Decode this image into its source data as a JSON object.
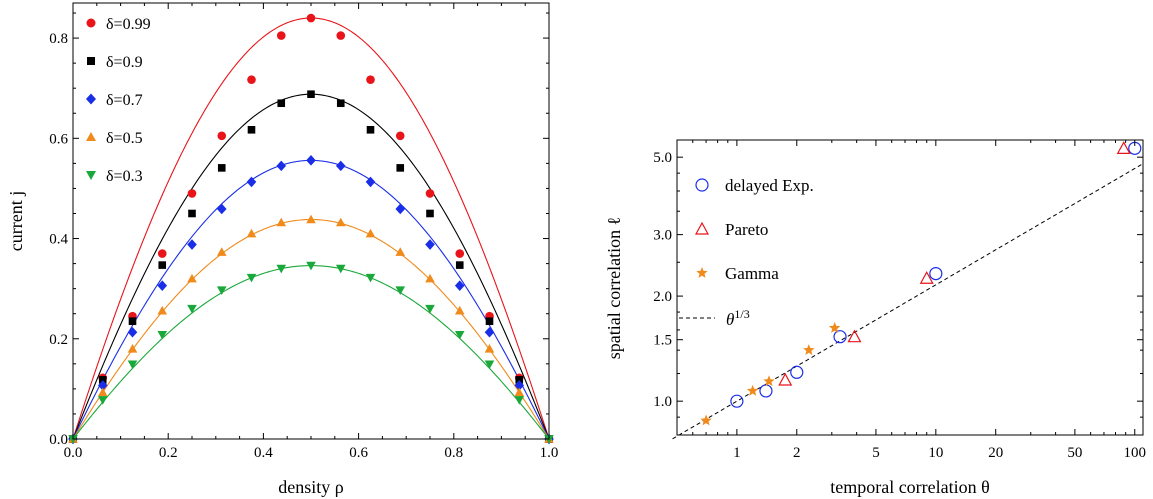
{
  "chart_data": [
    {
      "type": "line",
      "xlabel": "density ρ",
      "ylabel": "current j",
      "xlim": [
        0,
        1
      ],
      "ylim": [
        0,
        0.87
      ],
      "xticks": [
        0.0,
        0.2,
        0.4,
        0.6,
        0.8,
        1.0
      ],
      "xtick_labels": [
        "0.0",
        "0.2",
        "0.4",
        "0.6",
        "0.8",
        "1.0"
      ],
      "yticks": [
        0.0,
        0.2,
        0.4,
        0.6,
        0.8
      ],
      "ytick_labels": [
        "0.0",
        "0.2",
        "0.4",
        "0.6",
        "0.8"
      ],
      "legend_position": "top-left",
      "grid": false,
      "x": [
        0,
        0.0625,
        0.125,
        0.1875,
        0.25,
        0.3125,
        0.375,
        0.4375,
        0.5,
        0.5625,
        0.625,
        0.6875,
        0.75,
        0.8125,
        0.875,
        0.9375,
        1.0
      ],
      "series": [
        {
          "name": "δ=0.99",
          "color": "#e8141a",
          "marker": "circle",
          "values": [
            0,
            0.122,
            0.245,
            0.37,
            0.49,
            0.605,
            0.717,
            0.805,
            0.84,
            0.805,
            0.717,
            0.605,
            0.49,
            0.37,
            0.245,
            0.122,
            0
          ],
          "peak": 0.84
        },
        {
          "name": "δ=0.9",
          "color": "#000000",
          "marker": "square",
          "values": [
            0,
            0.118,
            0.235,
            0.347,
            0.45,
            0.541,
            0.617,
            0.67,
            0.688,
            0.67,
            0.617,
            0.541,
            0.45,
            0.347,
            0.235,
            0.118,
            0
          ],
          "peak": 0.688
        },
        {
          "name": "δ=0.7",
          "color": "#1a2ee8",
          "marker": "diamond",
          "values": [
            0,
            0.107,
            0.213,
            0.306,
            0.388,
            0.459,
            0.513,
            0.545,
            0.556,
            0.545,
            0.513,
            0.459,
            0.388,
            0.306,
            0.213,
            0.107,
            0
          ],
          "peak": 0.556
        },
        {
          "name": "δ=0.5",
          "color": "#f08a1a",
          "marker": "triangle-up",
          "values": [
            0,
            0.093,
            0.18,
            0.256,
            0.32,
            0.373,
            0.41,
            0.432,
            0.438,
            0.432,
            0.41,
            0.373,
            0.32,
            0.256,
            0.18,
            0.093,
            0
          ],
          "peak": 0.438
        },
        {
          "name": "δ=0.3",
          "color": "#1aa83a",
          "marker": "triangle-down",
          "values": [
            0,
            0.078,
            0.149,
            0.208,
            0.26,
            0.297,
            0.322,
            0.34,
            0.346,
            0.34,
            0.322,
            0.297,
            0.26,
            0.208,
            0.149,
            0.078,
            0
          ],
          "peak": 0.346
        }
      ]
    },
    {
      "type": "scatter",
      "xscale": "log",
      "yscale": "log",
      "xlabel": "temporal correlation θ",
      "ylabel": "spatial correlation ℓ",
      "xlim": [
        0.5,
        110
      ],
      "ylim": [
        0.8,
        5.6
      ],
      "xticks": [
        1,
        2,
        5,
        10,
        20,
        50,
        100
      ],
      "xtick_labels": [
        "1",
        "2",
        "5",
        "10",
        "20",
        "50",
        "100"
      ],
      "yticks": [
        1.0,
        1.5,
        2.0,
        3.0,
        5.0
      ],
      "ytick_labels": [
        "1.0",
        "1.5",
        "2.0",
        "3.0",
        "5.0"
      ],
      "legend_position": "left",
      "grid": false,
      "series": [
        {
          "name": "delayed Exp.",
          "color": "#1a2ee8",
          "marker": "open-circle",
          "points": [
            [
              1,
              1.0
            ],
            [
              1.4,
              1.07
            ],
            [
              2,
              1.21
            ],
            [
              3.3,
              1.53
            ],
            [
              10,
              2.32
            ],
            [
              100,
              5.3
            ]
          ]
        },
        {
          "name": "Pareto",
          "color": "#e8141a",
          "marker": "open-triangle",
          "points": [
            [
              1.75,
              1.15
            ],
            [
              3.9,
              1.53
            ],
            [
              9,
              2.25
            ],
            [
              88,
              5.3
            ]
          ]
        },
        {
          "name": "Gamma",
          "color": "#f08a1a",
          "marker": "star",
          "points": [
            [
              0.7,
              0.88
            ],
            [
              1.2,
              1.07
            ],
            [
              1.45,
              1.14
            ],
            [
              2.3,
              1.4
            ],
            [
              3.1,
              1.62
            ]
          ]
        },
        {
          "name": "θ^{1/3}",
          "label_base": "θ",
          "label_exp": "1/3",
          "color": "#000000",
          "style": "dashed",
          "coef": 1.0,
          "power": 0.3333
        }
      ]
    }
  ]
}
